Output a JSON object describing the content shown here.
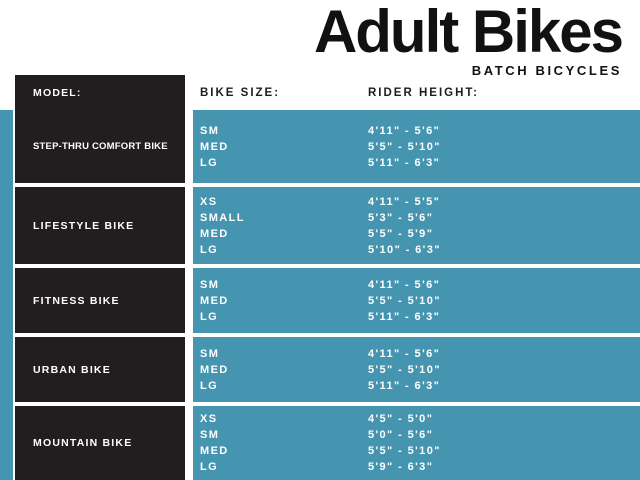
{
  "colors": {
    "teal": "#4595B1",
    "ink": "#221E1F",
    "text_on_dark": "#FFFFFF",
    "title_ink": "#111111"
  },
  "chart_data": {
    "type": "table",
    "title": "Adult Bikes",
    "subtitle": "BATCH BICYCLES",
    "columns": [
      "MODEL:",
      "BIKE SIZE:",
      "RIDER HEIGHT:"
    ],
    "rows": [
      {
        "model": "STEP-THRU COMFORT BIKE",
        "entries": [
          {
            "size": "SM",
            "height": "4'11\" - 5'6\""
          },
          {
            "size": "MED",
            "height": "5'5\" - 5'10\""
          },
          {
            "size": "LG",
            "height": "5'11\" - 6'3\""
          }
        ]
      },
      {
        "model": "LIFESTYLE BIKE",
        "entries": [
          {
            "size": "XS",
            "height": "4'11\" - 5'5\""
          },
          {
            "size": "SMALL",
            "height": "5'3\" - 5'6\""
          },
          {
            "size": "MED",
            "height": "5'5\" - 5'9\""
          },
          {
            "size": "LG",
            "height": "5'10\" - 6'3\""
          }
        ]
      },
      {
        "model": "FITNESS BIKE",
        "entries": [
          {
            "size": "SM",
            "height": "4'11\" - 5'6\""
          },
          {
            "size": "MED",
            "height": "5'5\" - 5'10\""
          },
          {
            "size": "LG",
            "height": "5'11\" - 6'3\""
          }
        ]
      },
      {
        "model": "URBAN BIKE",
        "entries": [
          {
            "size": "SM",
            "height": "4'11\" - 5'6\""
          },
          {
            "size": "MED",
            "height": "5'5\" - 5'10\""
          },
          {
            "size": "LG",
            "height": "5'11\" - 6'3\""
          }
        ]
      },
      {
        "model": "MOUNTAIN BIKE",
        "entries": [
          {
            "size": "XS",
            "height": "4'5\" - 5'0\""
          },
          {
            "size": "SM",
            "height": "5'0\" - 5'6\""
          },
          {
            "size": "MED",
            "height": "5'5\" - 5'10\""
          },
          {
            "size": "LG",
            "height": "5'9\" - 6'3\""
          }
        ]
      }
    ]
  }
}
